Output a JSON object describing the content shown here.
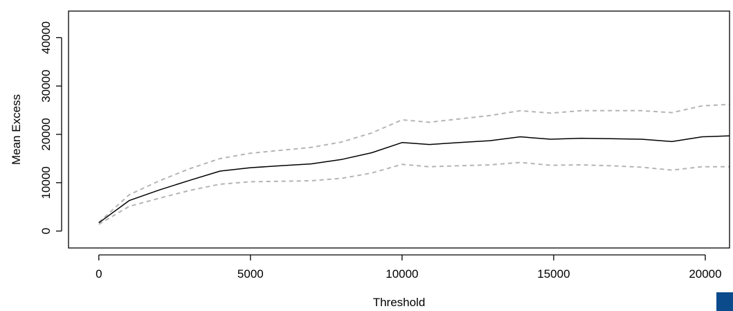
{
  "colors": {
    "accent_square": "#0b4a8b",
    "mean_line": "#000000",
    "ci_line": "#b4b4b4"
  },
  "corner_icon": "blue-square-icon",
  "chart_data": {
    "type": "line",
    "title": "",
    "xlabel": "Threshold",
    "ylabel": "Mean Excess",
    "xlim": [
      -1000,
      20800
    ],
    "ylim": [
      -3500,
      45500
    ],
    "x_ticks": [
      0,
      5000,
      10000,
      15000,
      20000
    ],
    "x_tick_labels": [
      "0",
      "5000",
      "10000",
      "15000",
      "20000"
    ],
    "y_ticks": [
      0,
      10000,
      20000,
      30000,
      40000
    ],
    "y_tick_labels": [
      "0",
      "10000",
      "20000",
      "30000",
      "40000"
    ],
    "grid": false,
    "x": [
      0,
      1000,
      2000,
      3000,
      4000,
      5000,
      6000,
      7000,
      8000,
      9000,
      10000,
      10900,
      11900,
      12900,
      13900,
      14900,
      15900,
      16900,
      17900,
      18900,
      19900,
      20800
    ],
    "series": [
      {
        "values": [
          1700,
          6300,
          8500,
          10500,
          12400,
          13100,
          13500,
          13900,
          14800,
          16200,
          18300,
          17900,
          18300,
          18700,
          19500,
          19000,
          19200,
          19100,
          19000,
          18500,
          19500,
          19700
        ]
      },
      {
        "values": [
          1800,
          7500,
          10400,
          12900,
          15000,
          16100,
          16700,
          17300,
          18400,
          20300,
          23000,
          22500,
          23200,
          23900,
          24900,
          24400,
          24900,
          24900,
          24900,
          24500,
          25900,
          26200
        ]
      },
      {
        "values": [
          1400,
          5100,
          6800,
          8400,
          9700,
          10200,
          10300,
          10400,
          10900,
          12000,
          13800,
          13300,
          13500,
          13700,
          14200,
          13600,
          13700,
          13500,
          13200,
          12600,
          13300,
          13300
        ]
      }
    ]
  }
}
